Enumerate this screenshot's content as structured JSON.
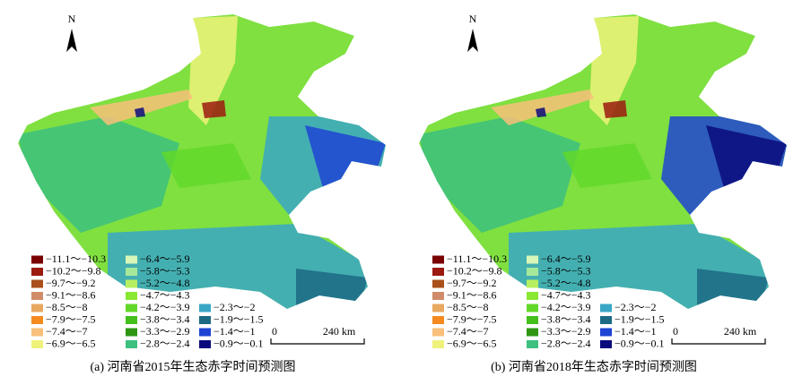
{
  "panels": [
    {
      "caption": "(a) 河南省2015年生态赤字时间预测图",
      "north": "N",
      "scale": {
        "start": "0",
        "end": "240 km"
      },
      "legend": [
        {
          "label": "−11.1～−10.3",
          "color": "#7a0000"
        },
        {
          "label": "−10.2～−9.8",
          "color": "#9c1a10"
        },
        {
          "label": "−9.7～−9.2",
          "color": "#a9501c"
        },
        {
          "label": "−9.1～−8.6",
          "color": "#d08c6a"
        },
        {
          "label": "−8.5～−8",
          "color": "#e8a860"
        },
        {
          "label": "−7.9～−7.5",
          "color": "#f58a20"
        },
        {
          "label": "−7.4～−7",
          "color": "#f8c07a"
        },
        {
          "label": "−6.9～−6.5",
          "color": "#eef27a"
        },
        {
          "label": "−6.4～−5.9",
          "color": "#d8f6b8"
        },
        {
          "label": "−5.8～−5.3",
          "color": "#a6e89a"
        },
        {
          "label": "−5.2～−4.8",
          "color": "#b6f060"
        },
        {
          "label": "−4.7～−4.3",
          "color": "#8ae832"
        },
        {
          "label": "−4.2～−3.9",
          "color": "#62d82a"
        },
        {
          "label": "−3.8～−3.4",
          "color": "#44c01c"
        },
        {
          "label": "−3.3～−2.9",
          "color": "#2e9612"
        },
        {
          "label": "−2.8～−2.4",
          "color": "#3cc07e"
        },
        {
          "label": "−2.3～−2",
          "color": "#3aa6c6"
        },
        {
          "label": "−1.9～−1.5",
          "color": "#1c6a84"
        },
        {
          "label": "−1.4～−1",
          "color": "#1e44d4"
        },
        {
          "label": "−0.9～−0.1",
          "color": "#0a0a7c"
        }
      ]
    },
    {
      "caption": "(b) 河南省2018年生态赤字时间预测图",
      "north": "N",
      "scale": {
        "start": "0",
        "end": "240 km"
      },
      "legend": [
        {
          "label": "−11.1～−10.3",
          "color": "#7a0000"
        },
        {
          "label": "−10.2～−9.8",
          "color": "#9c1a10"
        },
        {
          "label": "−9.7～−9.2",
          "color": "#a9501c"
        },
        {
          "label": "−9.1～−8.6",
          "color": "#d08c6a"
        },
        {
          "label": "−8.5～−8",
          "color": "#e8a860"
        },
        {
          "label": "−7.9～−7.5",
          "color": "#f58a20"
        },
        {
          "label": "−7.4～−7",
          "color": "#f8c07a"
        },
        {
          "label": "−6.9～−6.5",
          "color": "#eef27a"
        },
        {
          "label": "−6.4～−5.9",
          "color": "#d8f6b8"
        },
        {
          "label": "−5.8～−5.3",
          "color": "#a6e89a"
        },
        {
          "label": "−5.2～−4.8",
          "color": "#b6f060"
        },
        {
          "label": "−4.7～−4.3",
          "color": "#8ae832"
        },
        {
          "label": "−4.2～−3.9",
          "color": "#62d82a"
        },
        {
          "label": "−3.8～−3.4",
          "color": "#44c01c"
        },
        {
          "label": "−3.3～−2.9",
          "color": "#2e9612"
        },
        {
          "label": "−2.8～−2.4",
          "color": "#3cc07e"
        },
        {
          "label": "−2.3～−2",
          "color": "#3aa6c6"
        },
        {
          "label": "−1.9～−1.5",
          "color": "#1c6a84"
        },
        {
          "label": "−1.4～−1",
          "color": "#1e44d4"
        },
        {
          "label": "−0.9～−0.1",
          "color": "#0a0a7c"
        }
      ]
    }
  ]
}
